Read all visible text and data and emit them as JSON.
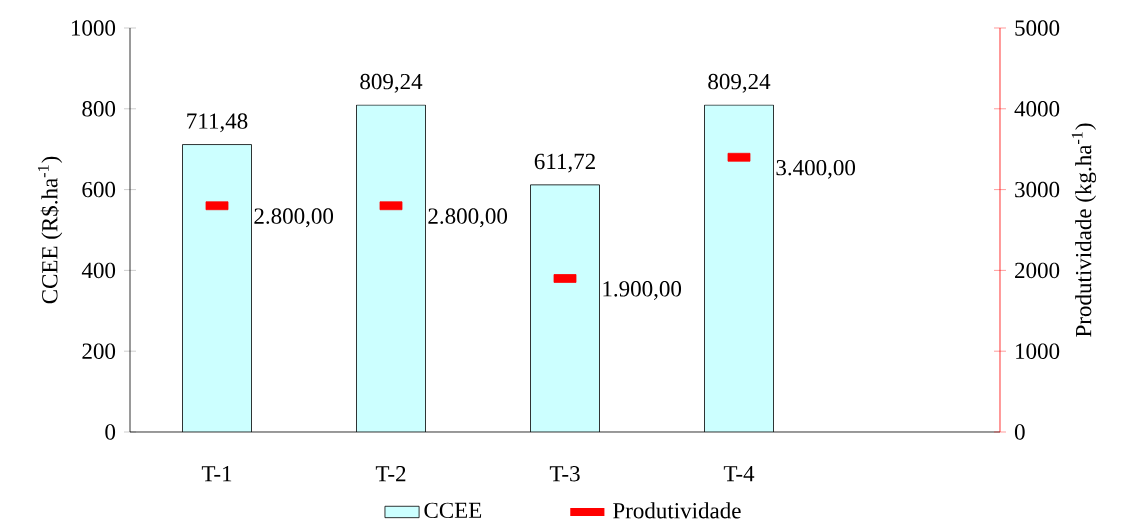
{
  "chart_data": {
    "type": "bar",
    "categories": [
      "T-1",
      "T-2",
      "T-3",
      "T-4",
      null
    ],
    "ylabel": "CCEE (R$.ha$^{-1}$)",
    "y2label": "Produtividade (kg.ha$^{-1}$)",
    "ylim": [
      0,
      1000
    ],
    "yticks": [
      0,
      200,
      400,
      600,
      800,
      1000
    ],
    "y2lim": [
      0,
      5000
    ],
    "y2ticks": [
      0,
      1000,
      2000,
      3000,
      4000,
      5000
    ],
    "legend": "bottom",
    "series": [
      {
        "name": "CCEE",
        "color": "#ccffff",
        "values": [
          711.48,
          809.24,
          611.72,
          809.24,
          null
        ],
        "value_labels": [
          "711,48",
          "809,24",
          "611,72",
          "809,24",
          null
        ]
      },
      {
        "name": "Produtividade",
        "type": "scatter",
        "axis": "y2",
        "color": "#ff0000",
        "values": [
          2800,
          2800,
          1900,
          3400,
          null
        ],
        "value_labels": [
          "2.800,00",
          "2.800,00",
          "1.900,00",
          "3.400,00",
          null
        ]
      }
    ]
  }
}
